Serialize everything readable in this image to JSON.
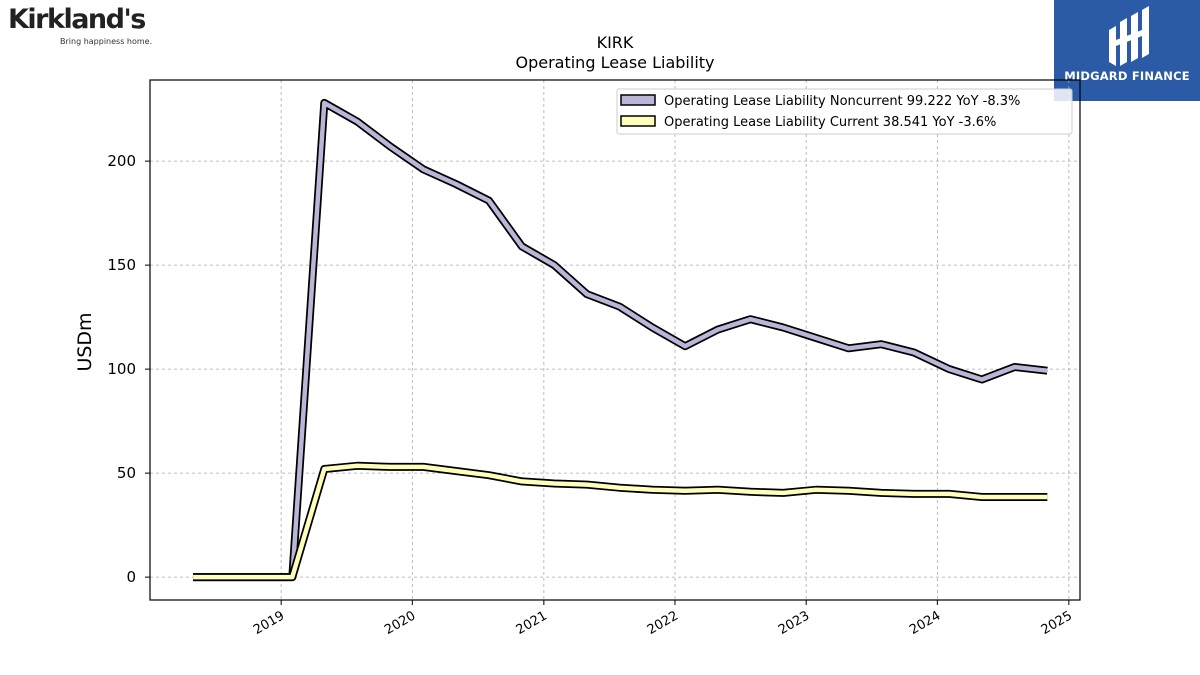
{
  "logos": {
    "left_brand": "Kirkland's",
    "left_tagline": "Bring happiness home.",
    "right_brand": "MIDGARD FINANCE"
  },
  "chart_data": {
    "type": "line",
    "title": "KIRK",
    "subtitle": "Operating Lease Liability",
    "ylabel": "USDm",
    "xlabel": "",
    "x_ticks": [
      "2019",
      "2020",
      "2021",
      "2022",
      "2023",
      "2024",
      "2025"
    ],
    "y_ticks": [
      0,
      50,
      100,
      150,
      200
    ],
    "xlim": [
      "2018-01-01",
      "2025-02-01"
    ],
    "ylim": [
      -11,
      239
    ],
    "grid": true,
    "legend_position": "top-right",
    "x": [
      "2018-05-01",
      "2018-08-01",
      "2018-11-01",
      "2019-02-01",
      "2019-05-01",
      "2019-08-01",
      "2019-11-01",
      "2020-02-01",
      "2020-05-01",
      "2020-08-01",
      "2020-11-01",
      "2021-01-30",
      "2021-05-01",
      "2021-07-31",
      "2021-10-30",
      "2022-01-29",
      "2022-04-30",
      "2022-07-30",
      "2022-10-29",
      "2023-01-28",
      "2023-04-29",
      "2023-07-29",
      "2023-10-28",
      "2024-02-03",
      "2024-05-04",
      "2024-08-03",
      "2024-11-02"
    ],
    "series": [
      {
        "name": "Operating Lease Liability Noncurrent  99.222 YoY -8.3%",
        "color": "#b9b6d8",
        "values": [
          0,
          0,
          0,
          0,
          228,
          219,
          207,
          196,
          189,
          181,
          159,
          150,
          136,
          130,
          120,
          111,
          119,
          124,
          120,
          115,
          110,
          112,
          108,
          100,
          95,
          101,
          99.222
        ]
      },
      {
        "name": "Operating Lease Liability Current  38.541 YoY -3.6%",
        "color": "#ffffbb",
        "values": [
          0,
          0,
          0,
          0,
          52,
          53.5,
          53,
          53,
          51,
          49,
          46,
          45,
          44.5,
          43,
          42,
          41.5,
          42,
          41,
          40.5,
          42,
          41.5,
          40.5,
          40,
          40,
          38.5,
          38.5,
          38.541
        ]
      }
    ]
  }
}
